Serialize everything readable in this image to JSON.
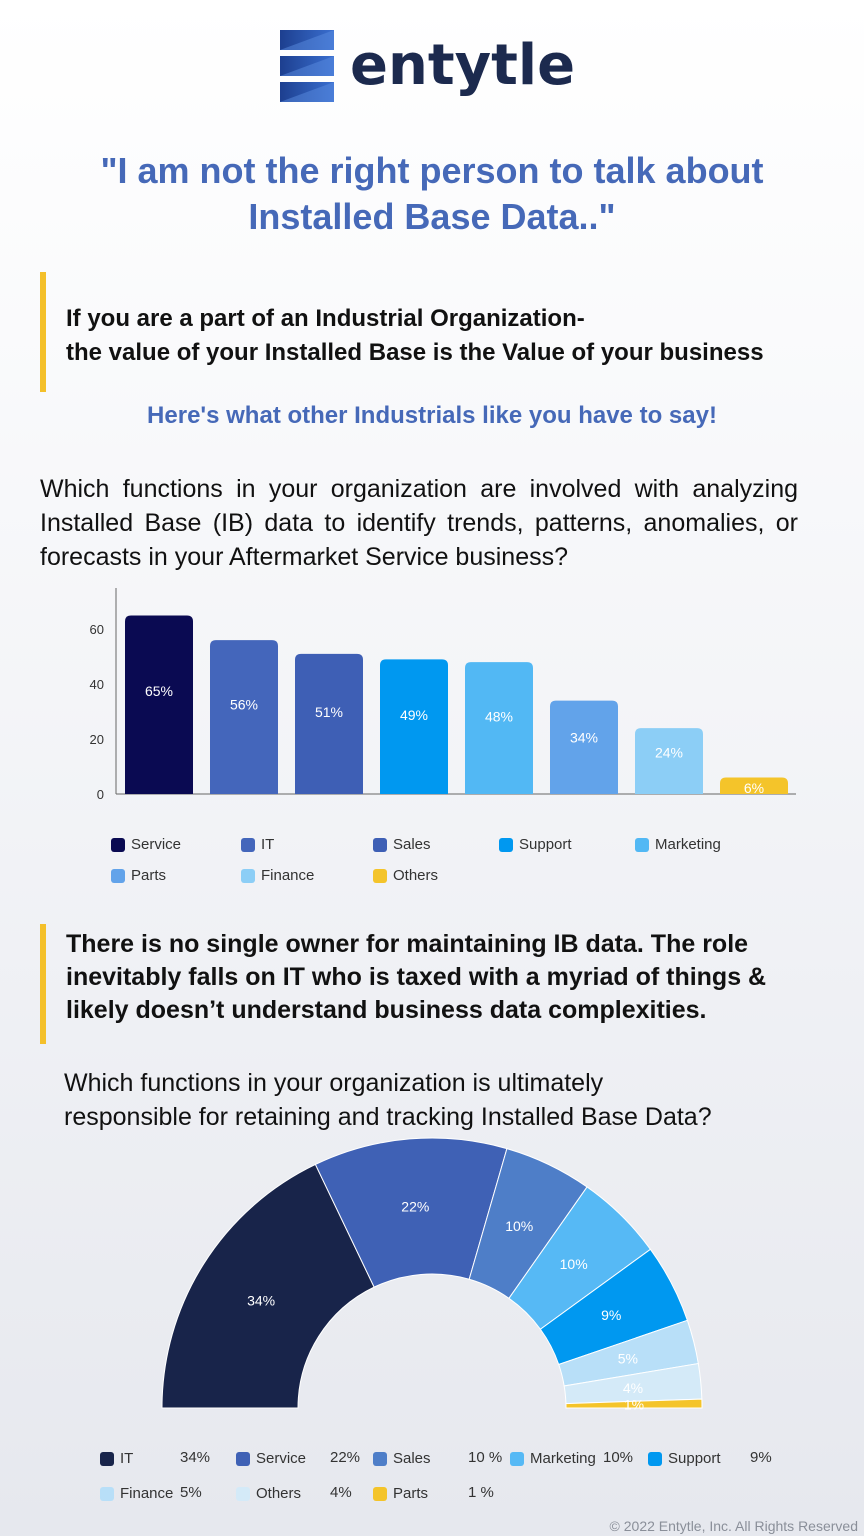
{
  "brand": {
    "name": "entytle"
  },
  "headline": "\"I am not the right person to talk about Installed Base Data..\"",
  "callout1": {
    "line1": "If you are a part of an Industrial Organization-",
    "line2": "the value of your Installed Base is the Value of your business"
  },
  "subhead": "Here's what other Industrials like you have to say!",
  "question1": "Which functions in your organization are involved with analyzing Installed Base (IB) data to identify trends, patterns, anomalies, or forecasts in your Aftermarket Service business?",
  "callout2": {
    "line1": "There is no single owner for maintaining IB data. The role",
    "line2": "inevitably falls on IT who is taxed with a myriad of things &",
    "line3": "likely doesn’t understand business data complexities."
  },
  "question2": {
    "line1": "Which functions in your organization is ultimately",
    "line2": "responsible for retaining and tracking Installed Base Data?"
  },
  "footer": "© 2022 Entytle, Inc. All Rights Reserved",
  "chart_data": [
    {
      "type": "bar",
      "categories": [
        "Service",
        "IT",
        "Sales",
        "Support",
        "Marketing",
        "Parts",
        "Finance",
        "Others"
      ],
      "values": [
        65,
        56,
        51,
        49,
        48,
        34,
        24,
        6
      ],
      "labels": [
        "65%",
        "56%",
        "51%",
        "49%",
        "48%",
        "34%",
        "24%",
        "6%"
      ],
      "colors": [
        "#0a0a52",
        "#4466bb",
        "#3e5fb5",
        "#0098f0",
        "#52b8f4",
        "#62a3ea",
        "#8ccef6",
        "#f4c42a"
      ],
      "yticks": [
        "0",
        "20",
        "40",
        "60"
      ],
      "ylim": [
        0,
        75
      ],
      "grid": false,
      "legend_position": "bottom"
    },
    {
      "type": "pie",
      "style": "semicircle donut",
      "categories": [
        "IT",
        "Service",
        "Sales",
        "Marketing",
        "Support",
        "Finance",
        "Others",
        "Parts"
      ],
      "values": [
        34,
        22,
        10,
        10,
        9,
        5,
        4,
        1
      ],
      "labels": [
        "34%",
        "22%",
        "10%",
        "10%",
        "9%",
        "5%",
        "4%",
        "1%"
      ],
      "legend_values": [
        "34%",
        "22%",
        "10 %",
        "10%",
        "9%",
        "5%",
        "4%",
        "1 %"
      ],
      "colors": [
        "#18244a",
        "#3f61b5",
        "#4e7ec8",
        "#56b9f5",
        "#0098f0",
        "#b8dff8",
        "#d4eaf8",
        "#f4c42a"
      ],
      "legend_position": "bottom"
    }
  ]
}
